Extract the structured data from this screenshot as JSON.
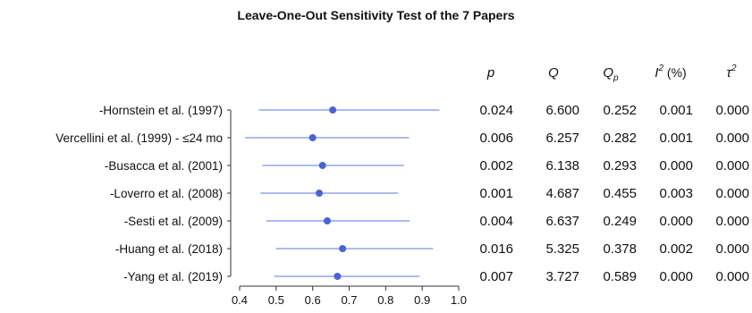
{
  "chart_data": {
    "type": "forest",
    "title": "Leave-One-Out Sensitivity Test of the 7 Papers",
    "xlim": [
      0.4,
      1.0
    ],
    "xticks": [
      "0.4",
      "0.5",
      "0.6",
      "0.7",
      "0.8",
      "0.9",
      "1.0"
    ],
    "point_color": "#4a63d8",
    "ci_color": "#8fa6f0",
    "columns": [
      {
        "key": "p",
        "label": "p"
      },
      {
        "key": "Q",
        "label": "Q"
      },
      {
        "key": "Qp",
        "label": "Q",
        "sub": "p"
      },
      {
        "key": "I2",
        "label": "I",
        "sup": "2",
        "suffix": " (%)"
      },
      {
        "key": "tau2",
        "label": "τ",
        "sup": "2"
      }
    ],
    "rows": [
      {
        "label": "-Hornstein et al. (1997)",
        "est": 0.655,
        "lo": 0.452,
        "hi": 0.947,
        "p": "0.024",
        "Q": "6.600",
        "Qp": "0.252",
        "I2": "0.001",
        "tau2": "0.000"
      },
      {
        "label": "Vercellini et al. (1999) - ≤24 mo",
        "est": 0.6,
        "lo": 0.415,
        "hi": 0.864,
        "p": "0.006",
        "Q": "6.257",
        "Qp": "0.282",
        "I2": "0.001",
        "tau2": "0.000"
      },
      {
        "label": "-Busacca et al. (2001)",
        "est": 0.627,
        "lo": 0.462,
        "hi": 0.85,
        "p": "0.002",
        "Q": "6.138",
        "Qp": "0.293",
        "I2": "0.000",
        "tau2": "0.000"
      },
      {
        "label": "-Loverro et al. (2008)",
        "est": 0.618,
        "lo": 0.457,
        "hi": 0.834,
        "p": "0.001",
        "Q": "4.687",
        "Qp": "0.455",
        "I2": "0.003",
        "tau2": "0.000"
      },
      {
        "label": "-Sesti et al. (2009)",
        "est": 0.64,
        "lo": 0.473,
        "hi": 0.866,
        "p": "0.004",
        "Q": "6.637",
        "Qp": "0.249",
        "I2": "0.000",
        "tau2": "0.000"
      },
      {
        "label": "-Huang et al. (2018)",
        "est": 0.682,
        "lo": 0.5,
        "hi": 0.93,
        "p": "0.016",
        "Q": "5.325",
        "Qp": "0.378",
        "I2": "0.002",
        "tau2": "0.000"
      },
      {
        "label": "-Yang et al. (2019)",
        "est": 0.668,
        "lo": 0.495,
        "hi": 0.893,
        "p": "0.007",
        "Q": "3.727",
        "Qp": "0.589",
        "I2": "0.000",
        "tau2": "0.000"
      }
    ]
  }
}
